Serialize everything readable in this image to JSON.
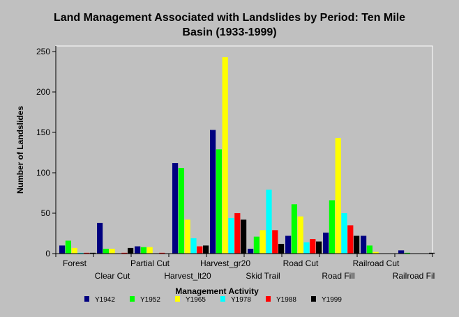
{
  "chart_data": {
    "type": "bar",
    "title_lines": [
      "Land Management Associated with Landslides by Period: Ten Mile",
      "Basin (1933-1999)"
    ],
    "xlabel": "Management Activity",
    "ylabel": "Number of Landslides",
    "ylim": [
      0,
      250
    ],
    "yticks": [
      0,
      50,
      100,
      150,
      200,
      250
    ],
    "grid": false,
    "legend_position": "bottom",
    "categories": [
      "Forest",
      "Clear Cut",
      "Partial Cut",
      "Harvest_lt20",
      "Harvest_gr20",
      "Skid Trail",
      "Road Cut",
      "Road Fill",
      "Railroad Cut",
      "Railroad Fil"
    ],
    "series": [
      {
        "name": "Y1942",
        "color": "#000080",
        "values": [
          10,
          38,
          9,
          112,
          153,
          6,
          22,
          26,
          22,
          4
        ]
      },
      {
        "name": "Y1952",
        "color": "#00ff00",
        "values": [
          16,
          6,
          8,
          106,
          129,
          21,
          61,
          66,
          10,
          1
        ]
      },
      {
        "name": "Y1965",
        "color": "#ffff00",
        "values": [
          7,
          6,
          8,
          42,
          243,
          29,
          46,
          143,
          2,
          0
        ]
      },
      {
        "name": "Y1978",
        "color": "#00ffff",
        "values": [
          1,
          0,
          0,
          19,
          44,
          79,
          14,
          50,
          0,
          0
        ]
      },
      {
        "name": "Y1988",
        "color": "#ff0000",
        "values": [
          1,
          1,
          1,
          9,
          50,
          29,
          18,
          35,
          0,
          0
        ]
      },
      {
        "name": "Y1999",
        "color": "#000000",
        "values": [
          1,
          7,
          0,
          10,
          42,
          12,
          15,
          22,
          0,
          1
        ]
      }
    ]
  }
}
